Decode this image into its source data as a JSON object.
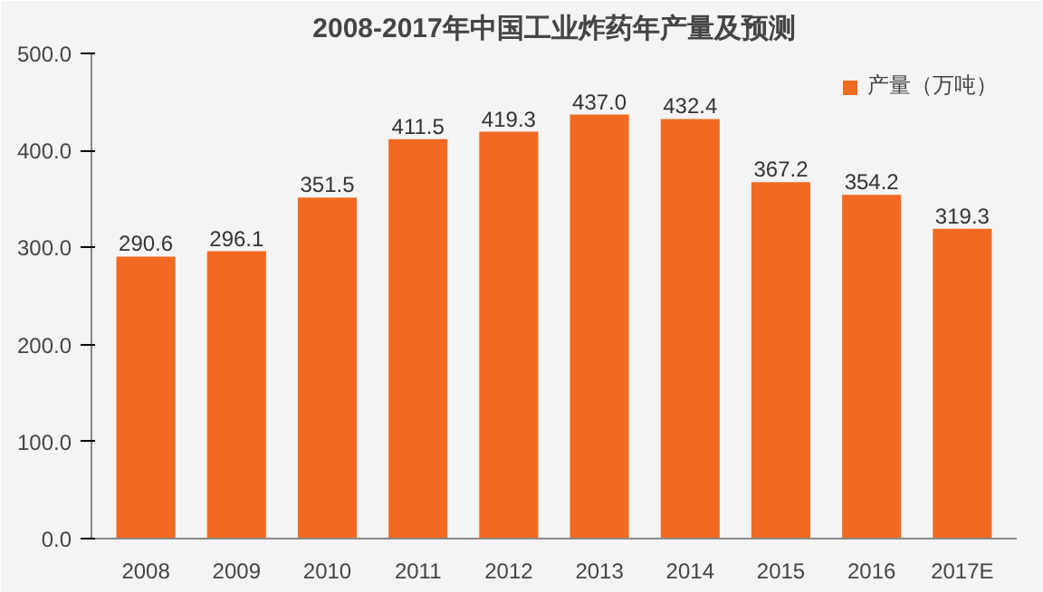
{
  "chart_data": {
    "type": "bar",
    "title": "2008-2017年中国工业炸药年产量及预测",
    "categories": [
      "2008",
      "2009",
      "2010",
      "2011",
      "2012",
      "2013",
      "2014",
      "2015",
      "2016",
      "2017E"
    ],
    "series": [
      {
        "name": "产量（万吨）",
        "color": "#f26a21",
        "values": [
          290.6,
          296.1,
          351.5,
          411.5,
          419.3,
          437.0,
          432.4,
          367.2,
          354.2,
          319.3
        ],
        "value_labels": [
          "290.6",
          "296.1",
          "351.5",
          "411.5",
          "419.3",
          "437.0",
          "432.4",
          "367.2",
          "354.2",
          "319.3"
        ]
      }
    ],
    "ylim": [
      0,
      500
    ],
    "yticks": [
      {
        "value": 0,
        "label": "0.0"
      },
      {
        "value": 100,
        "label": "100.0"
      },
      {
        "value": 200,
        "label": "200.0"
      },
      {
        "value": 300,
        "label": "300.0"
      },
      {
        "value": 400,
        "label": "400.0"
      },
      {
        "value": 500,
        "label": "500.0"
      }
    ],
    "legend": "top right",
    "grid": false
  }
}
